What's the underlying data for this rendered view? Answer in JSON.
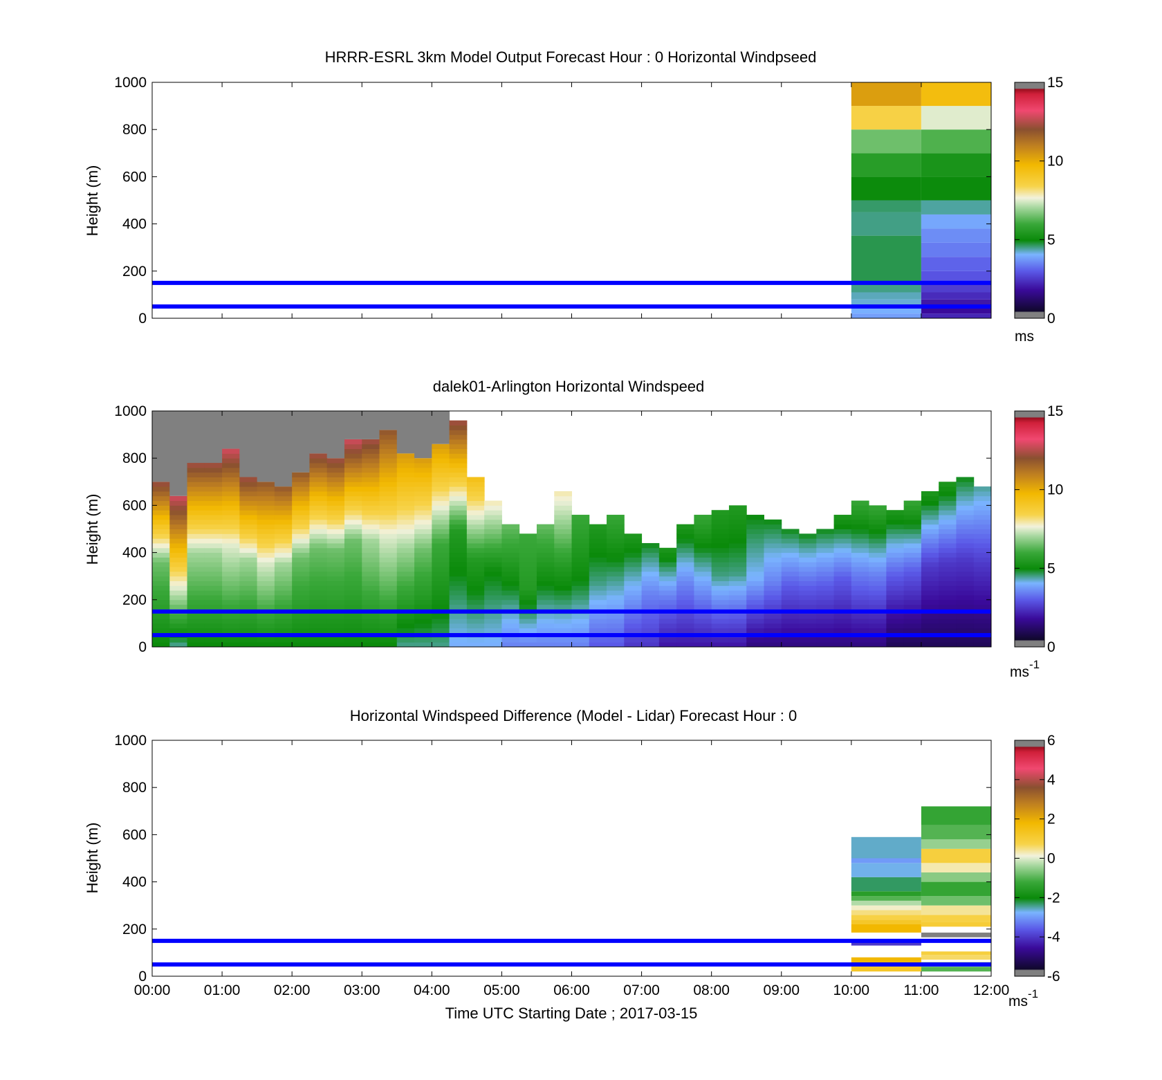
{
  "x_tick_labels": [
    "00:00",
    "01:00",
    "02:00",
    "03:00",
    "04:00",
    "05:00",
    "06:00",
    "07:00",
    "08:00",
    "09:00",
    "10:00",
    "11:00",
    "12:00"
  ],
  "x_axis_label": "Time UTC  Starting Date ; 2017-03-15",
  "chart_data": [
    {
      "type": "heatmap",
      "title": "HRRR-ESRL 3km Model Output   Forecast Hour : 0 Horizontal Windpseed",
      "ylabel": "Height (m)",
      "xlim_hours": [
        0,
        12
      ],
      "ylim": [
        0,
        1000
      ],
      "yticks": [
        0,
        200,
        400,
        600,
        800,
        1000
      ],
      "colorbar": {
        "min": 0,
        "max": 15,
        "ticks": [
          0,
          5,
          10,
          15
        ],
        "unit": "ms",
        "unit_sup": ""
      },
      "reference_lines_m": [
        50,
        150
      ],
      "reference_line_color": "#0000ff",
      "columns": [
        {
          "start_hour": 10,
          "end_hour": 11,
          "levels": [
            {
              "bottom": 0,
              "top": 20,
              "value": 3.8
            },
            {
              "bottom": 20,
              "top": 50,
              "value": 4.0
            },
            {
              "bottom": 50,
              "top": 80,
              "value": 4.2
            },
            {
              "bottom": 80,
              "top": 110,
              "value": 4.3
            },
            {
              "bottom": 110,
              "top": 150,
              "value": 4.5
            },
            {
              "bottom": 150,
              "top": 350,
              "value": 4.7
            },
            {
              "bottom": 350,
              "top": 450,
              "value": 4.5
            },
            {
              "bottom": 450,
              "top": 500,
              "value": 4.6
            },
            {
              "bottom": 500,
              "top": 600,
              "value": 5.0
            },
            {
              "bottom": 600,
              "top": 700,
              "value": 5.6
            },
            {
              "bottom": 700,
              "top": 800,
              "value": 6.5
            },
            {
              "bottom": 800,
              "top": 900,
              "value": 8.5
            },
            {
              "bottom": 900,
              "top": 1000,
              "value": 10.3
            }
          ]
        },
        {
          "start_hour": 11,
          "end_hour": 12,
          "levels": [
            {
              "bottom": 0,
              "top": 20,
              "value": 2.2
            },
            {
              "bottom": 20,
              "top": 50,
              "value": 1.8
            },
            {
              "bottom": 50,
              "top": 80,
              "value": 2.0
            },
            {
              "bottom": 80,
              "top": 110,
              "value": 2.3
            },
            {
              "bottom": 110,
              "top": 150,
              "value": 2.6
            },
            {
              "bottom": 150,
              "top": 200,
              "value": 2.9
            },
            {
              "bottom": 200,
              "top": 260,
              "value": 3.1
            },
            {
              "bottom": 260,
              "top": 320,
              "value": 3.4
            },
            {
              "bottom": 320,
              "top": 380,
              "value": 3.6
            },
            {
              "bottom": 380,
              "top": 440,
              "value": 3.9
            },
            {
              "bottom": 440,
              "top": 500,
              "value": 4.4
            },
            {
              "bottom": 500,
              "top": 600,
              "value": 5.0
            },
            {
              "bottom": 600,
              "top": 700,
              "value": 5.3
            },
            {
              "bottom": 700,
              "top": 800,
              "value": 6.2
            },
            {
              "bottom": 800,
              "top": 900,
              "value": 7.5
            },
            {
              "bottom": 900,
              "top": 1000,
              "value": 9.5
            }
          ]
        }
      ]
    },
    {
      "type": "heatmap",
      "title": "dalek01-Arlington  Horizontal Windspeed",
      "ylabel": "Height (m)",
      "xlim_hours": [
        0,
        12
      ],
      "ylim": [
        0,
        1000
      ],
      "yticks": [
        0,
        200,
        400,
        600,
        800,
        1000
      ],
      "colorbar": {
        "min": 0,
        "max": 15,
        "ticks": [
          0,
          5,
          10,
          15
        ],
        "unit": "ms",
        "unit_sup": "-1"
      },
      "reference_lines_m": [
        50,
        150
      ],
      "reference_line_color": "#0000ff",
      "time_step_hours": 0.25,
      "gate_size_m": 20,
      "profiles": [
        {
          "max_height": 700,
          "surface": 5.0,
          "mid": 6.5,
          "top": 12.5
        },
        {
          "max_height": 640,
          "surface": 4.5,
          "mid": 8.5,
          "top": 13.0
        },
        {
          "max_height": 780,
          "surface": 5.0,
          "mid": 7.0,
          "top": 12.5
        },
        {
          "max_height": 780,
          "surface": 5.0,
          "mid": 7.0,
          "top": 12.5
        },
        {
          "max_height": 840,
          "surface": 5.0,
          "mid": 7.5,
          "top": 13.0
        },
        {
          "max_height": 720,
          "surface": 5.0,
          "mid": 7.0,
          "top": 12.5
        },
        {
          "max_height": 700,
          "surface": 5.0,
          "mid": 7.5,
          "top": 12.0
        },
        {
          "max_height": 680,
          "surface": 5.0,
          "mid": 7.0,
          "top": 12.0
        },
        {
          "max_height": 740,
          "surface": 5.0,
          "mid": 6.5,
          "top": 12.0
        },
        {
          "max_height": 820,
          "surface": 5.0,
          "mid": 6.5,
          "top": 12.5
        },
        {
          "max_height": 800,
          "surface": 5.0,
          "mid": 6.5,
          "top": 12.5
        },
        {
          "max_height": 880,
          "surface": 5.0,
          "mid": 6.5,
          "top": 13.0
        },
        {
          "max_height": 880,
          "surface": 5.0,
          "mid": 7.0,
          "top": 12.5
        },
        {
          "max_height": 920,
          "surface": 5.0,
          "mid": 7.5,
          "top": 12.0
        },
        {
          "max_height": 820,
          "surface": 4.5,
          "mid": 7.0,
          "top": 10.5
        },
        {
          "max_height": 800,
          "surface": 4.5,
          "mid": 6.5,
          "top": 10.5
        },
        {
          "max_height": 860,
          "surface": 4.5,
          "mid": 6.0,
          "top": 10.5
        },
        {
          "max_height": 960,
          "surface": 4.0,
          "mid": 5.5,
          "top": 12.5
        },
        {
          "max_height": 720,
          "surface": 4.0,
          "mid": 5.5,
          "top": 9.5
        },
        {
          "max_height": 620,
          "surface": 4.0,
          "mid": 5.0,
          "top": 8.0
        },
        {
          "max_height": 520,
          "surface": 3.5,
          "mid": 5.0,
          "top": 6.5
        },
        {
          "max_height": 470,
          "surface": 3.5,
          "mid": 5.5,
          "top": 6.0
        },
        {
          "max_height": 520,
          "surface": 3.5,
          "mid": 5.0,
          "top": 6.5
        },
        {
          "max_height": 660,
          "surface": 3.5,
          "mid": 5.5,
          "top": 8.0
        },
        {
          "max_height": 560,
          "surface": 3.5,
          "mid": 5.0,
          "top": 6.0
        },
        {
          "max_height": 520,
          "surface": 3.0,
          "mid": 4.5,
          "top": 5.5
        },
        {
          "max_height": 560,
          "surface": 3.0,
          "mid": 4.5,
          "top": 6.0
        },
        {
          "max_height": 480,
          "surface": 2.5,
          "mid": 4.0,
          "top": 5.5
        },
        {
          "max_height": 440,
          "surface": 2.5,
          "mid": 3.5,
          "top": 5.0
        },
        {
          "max_height": 420,
          "surface": 2.0,
          "mid": 3.5,
          "top": 5.5
        },
        {
          "max_height": 520,
          "surface": 2.0,
          "mid": 3.5,
          "top": 5.5
        },
        {
          "max_height": 560,
          "surface": 2.0,
          "mid": 4.0,
          "top": 6.0
        },
        {
          "max_height": 580,
          "surface": 2.0,
          "mid": 4.5,
          "top": 5.5
        },
        {
          "max_height": 600,
          "surface": 2.0,
          "mid": 4.5,
          "top": 5.5
        },
        {
          "max_height": 560,
          "surface": 1.5,
          "mid": 4.0,
          "top": 5.0
        },
        {
          "max_height": 540,
          "surface": 1.5,
          "mid": 3.5,
          "top": 5.0
        },
        {
          "max_height": 500,
          "surface": 1.5,
          "mid": 3.0,
          "top": 5.0
        },
        {
          "max_height": 480,
          "surface": 1.5,
          "mid": 3.0,
          "top": 5.0
        },
        {
          "max_height": 500,
          "surface": 1.5,
          "mid": 3.0,
          "top": 5.0
        },
        {
          "max_height": 560,
          "surface": 1.5,
          "mid": 3.0,
          "top": 5.5
        },
        {
          "max_height": 620,
          "surface": 1.5,
          "mid": 3.5,
          "top": 6.0
        },
        {
          "max_height": 600,
          "surface": 1.5,
          "mid": 3.5,
          "top": 6.0
        },
        {
          "max_height": 580,
          "surface": 1.0,
          "mid": 3.0,
          "top": 5.5
        },
        {
          "max_height": 620,
          "surface": 1.0,
          "mid": 3.0,
          "top": 6.0
        },
        {
          "max_height": 660,
          "surface": 1.0,
          "mid": 2.5,
          "top": 5.5
        },
        {
          "max_height": 700,
          "surface": 1.0,
          "mid": 2.5,
          "top": 5.5
        },
        {
          "max_height": 720,
          "surface": 1.0,
          "mid": 2.5,
          "top": 5.0
        },
        {
          "max_height": 680,
          "surface": 1.0,
          "mid": 2.5,
          "top": 4.5
        }
      ]
    },
    {
      "type": "heatmap",
      "title": "Horizontal Windspeed Difference (Model - Lidar) Forecast Hour : 0",
      "ylabel": "Height (m)",
      "xlim_hours": [
        0,
        12
      ],
      "ylim": [
        0,
        1000
      ],
      "yticks": [
        0,
        200,
        400,
        600,
        800,
        1000
      ],
      "colorbar": {
        "min": -6,
        "max": 6,
        "ticks": [
          -6,
          -4,
          -2,
          0,
          2,
          4,
          6
        ],
        "unit": "ms",
        "unit_sup": "-1"
      },
      "reference_lines_m": [
        50,
        150
      ],
      "reference_line_color": "#0000ff",
      "columns": [
        {
          "start_hour": 10,
          "end_hour": 11,
          "levels": [
            {
              "bottom": 20,
              "top": 40,
              "value": 1.2
            },
            {
              "bottom": 40,
              "top": 80,
              "value": 1.8
            },
            {
              "bottom": 130,
              "top": 145,
              "value": -4.0
            },
            {
              "bottom": 145,
              "top": 155,
              "value": -3.5
            },
            {
              "bottom": 185,
              "top": 220,
              "value": 1.8
            },
            {
              "bottom": 220,
              "top": 240,
              "value": 1.2
            },
            {
              "bottom": 240,
              "top": 260,
              "value": 0.8
            },
            {
              "bottom": 260,
              "top": 280,
              "value": 0.5
            },
            {
              "bottom": 280,
              "top": 300,
              "value": 0.2
            },
            {
              "bottom": 300,
              "top": 320,
              "value": -0.3
            },
            {
              "bottom": 320,
              "top": 340,
              "value": -1.0
            },
            {
              "bottom": 340,
              "top": 360,
              "value": -1.5
            },
            {
              "bottom": 360,
              "top": 420,
              "value": -2.3
            },
            {
              "bottom": 420,
              "top": 480,
              "value": -2.7
            },
            {
              "bottom": 480,
              "top": 500,
              "value": -3.0
            },
            {
              "bottom": 500,
              "top": 590,
              "value": -2.6
            }
          ]
        },
        {
          "start_hour": 11,
          "end_hour": 12,
          "levels": [
            {
              "bottom": 20,
              "top": 40,
              "value": -1.0
            },
            {
              "bottom": 40,
              "top": 60,
              "value": -0.5
            },
            {
              "bottom": 70,
              "top": 90,
              "value": 0.6
            },
            {
              "bottom": 90,
              "top": 105,
              "value": 0.9
            },
            {
              "bottom": 165,
              "top": 185,
              "value": 6.0
            },
            {
              "bottom": 210,
              "top": 230,
              "value": 1.0
            },
            {
              "bottom": 230,
              "top": 260,
              "value": 0.8
            },
            {
              "bottom": 260,
              "top": 300,
              "value": 0.4
            },
            {
              "bottom": 300,
              "top": 340,
              "value": -0.8
            },
            {
              "bottom": 340,
              "top": 400,
              "value": -1.3
            },
            {
              "bottom": 400,
              "top": 440,
              "value": -0.6
            },
            {
              "bottom": 440,
              "top": 480,
              "value": 0.3
            },
            {
              "bottom": 480,
              "top": 540,
              "value": 0.9
            },
            {
              "bottom": 540,
              "top": 580,
              "value": -0.5
            },
            {
              "bottom": 580,
              "top": 640,
              "value": -1.0
            },
            {
              "bottom": 640,
              "top": 720,
              "value": -1.3
            }
          ]
        }
      ]
    }
  ]
}
